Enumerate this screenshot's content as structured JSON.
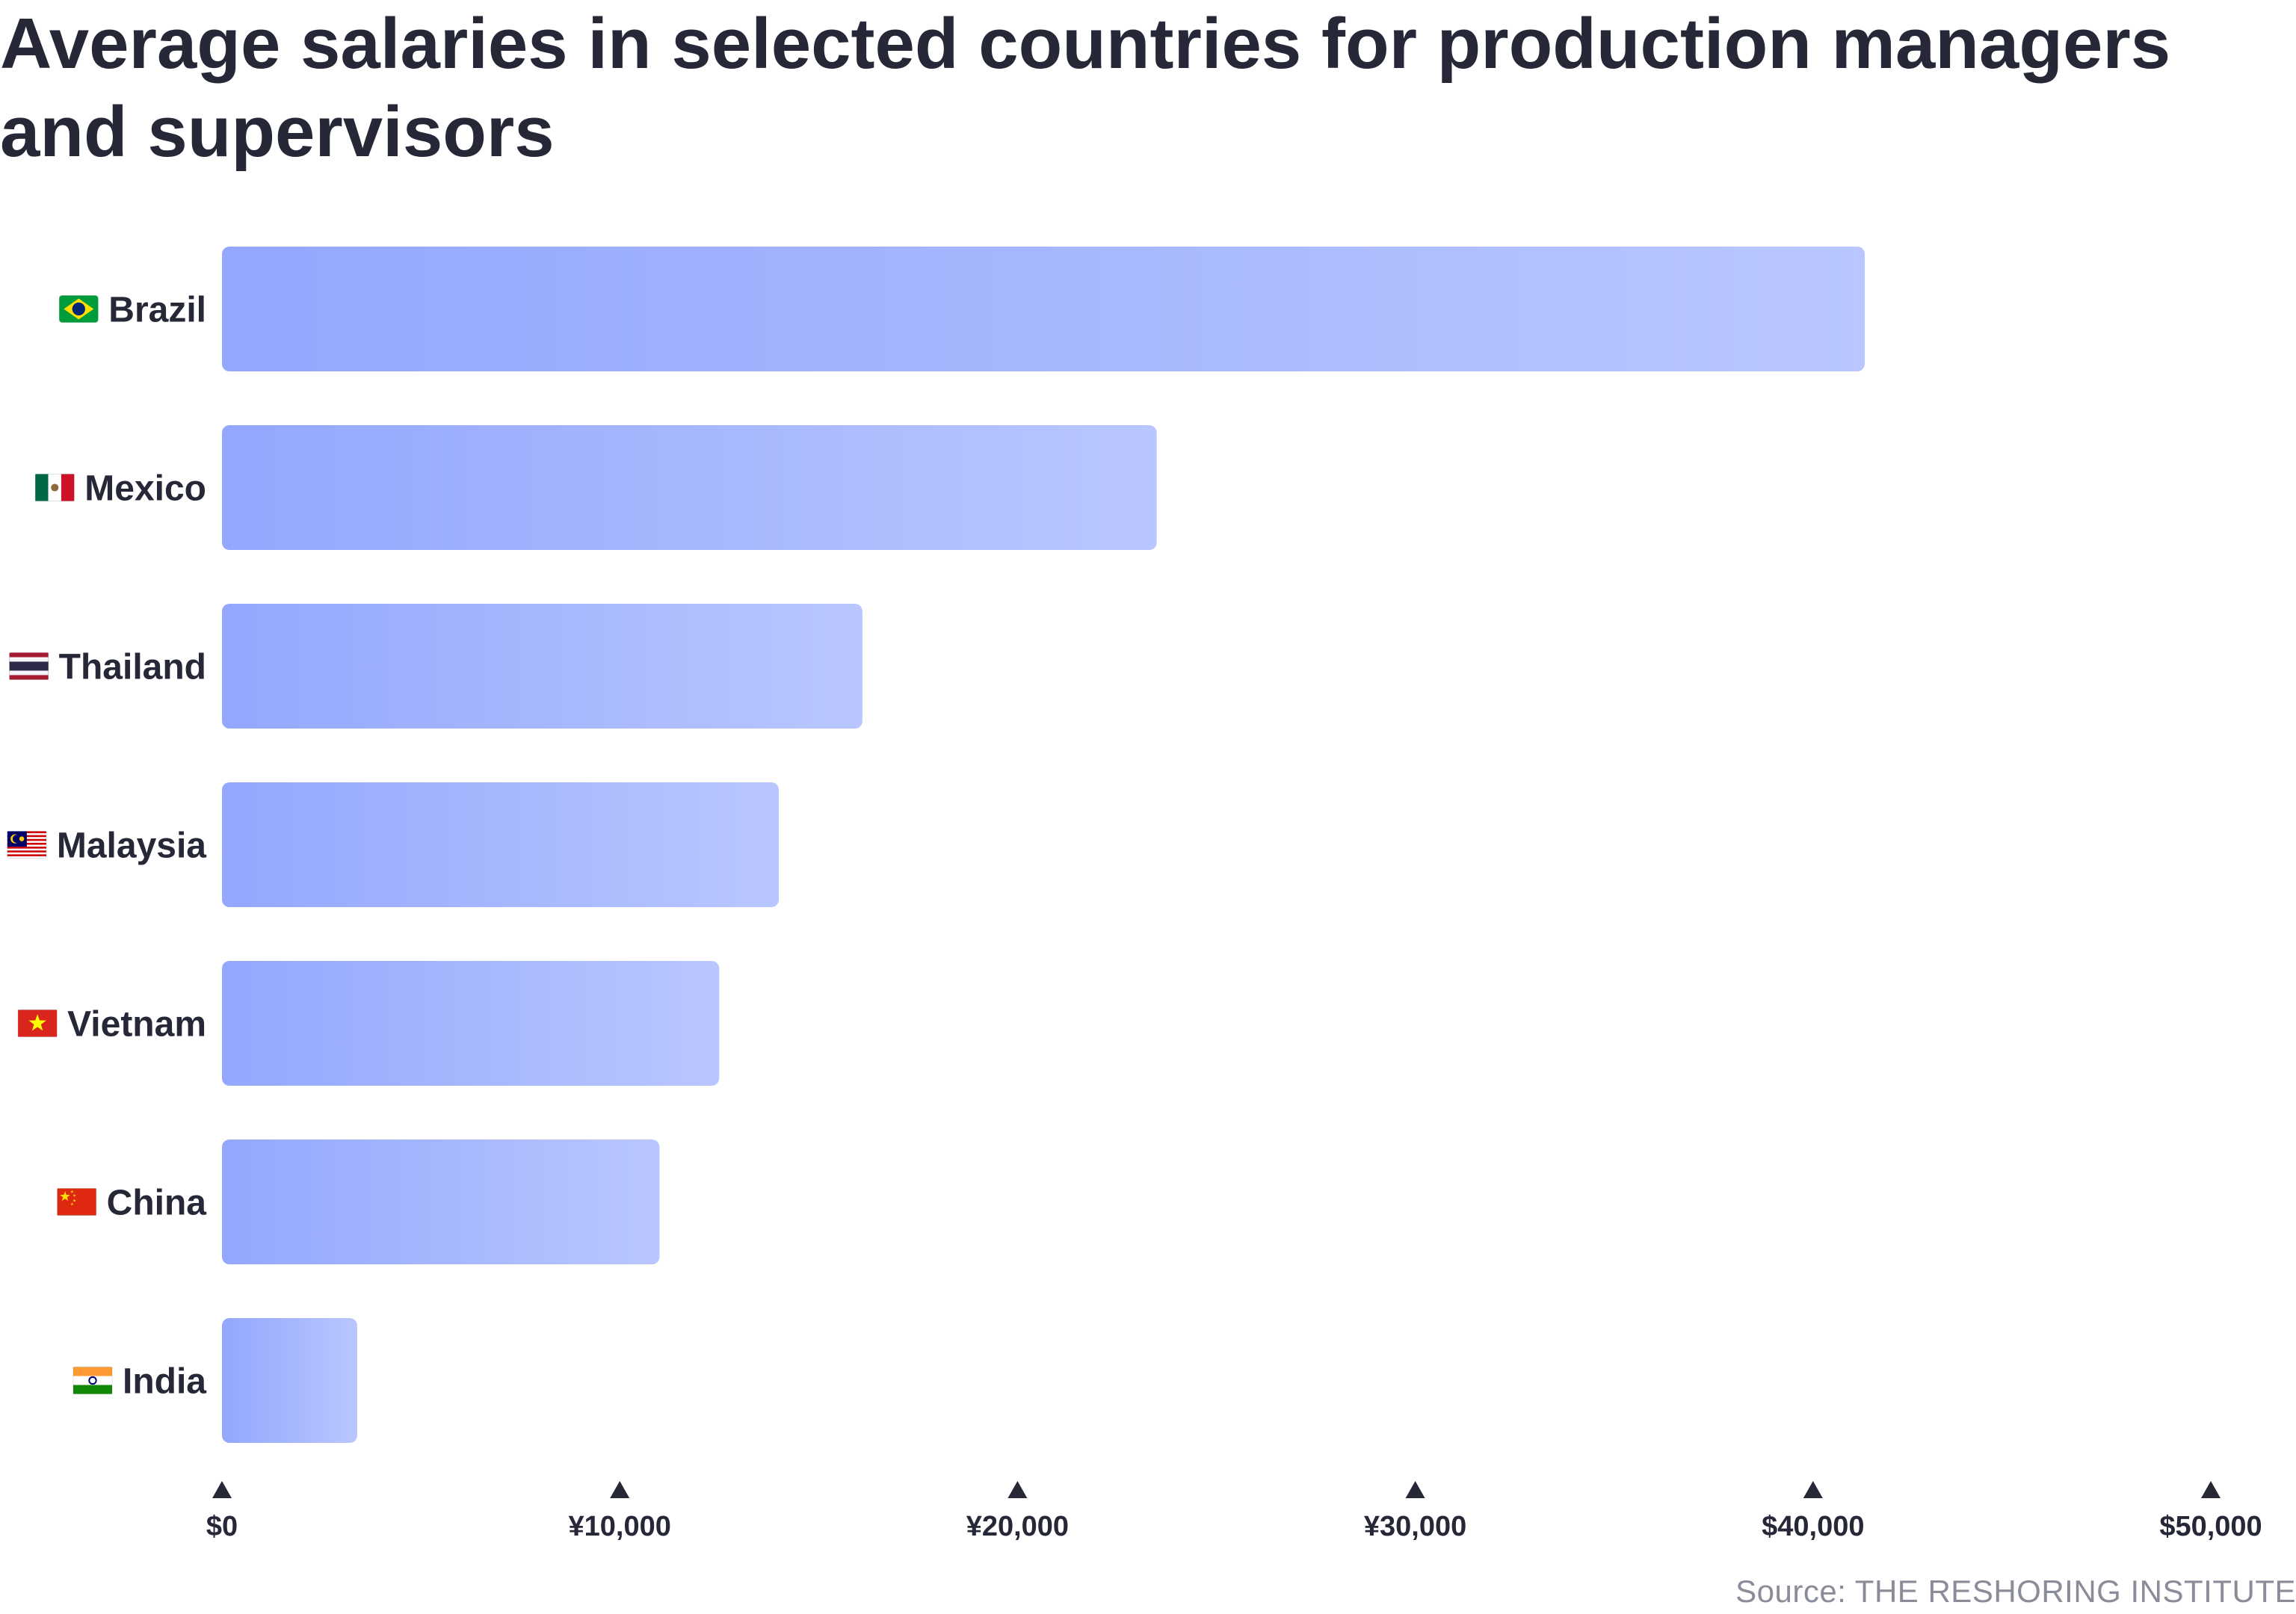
{
  "title": "Average salaries in selected countries for production managers and supervisors",
  "source": "Source: THE RESHORING INSTITUTE",
  "colors": {
    "bar_start": "#93a7fd",
    "bar_end": "#b9c6ff",
    "text": "#262838",
    "source": "#8a8d99"
  },
  "chart_data": {
    "type": "bar",
    "orientation": "horizontal",
    "title": "Average salaries in selected countries for production managers and supervisors",
    "categories": [
      "Brazil",
      "Mexico",
      "Thailand",
      "Malaysia",
      "Vietnam",
      "China",
      "India"
    ],
    "flags": [
      "BR",
      "MX",
      "TH",
      "MY",
      "VN",
      "CN",
      "IN"
    ],
    "values": [
      41300,
      23500,
      16100,
      14000,
      12500,
      11000,
      3400
    ],
    "xlim": [
      0,
      50000
    ],
    "ticks": [
      0,
      10000,
      20000,
      30000,
      40000,
      50000
    ],
    "tick_labels": [
      "$0",
      "¥10,000",
      "¥20,000",
      "¥30,000",
      "$40,000",
      "$50,000"
    ],
    "xlabel": "",
    "ylabel": "",
    "grid": false,
    "legend": "none"
  }
}
